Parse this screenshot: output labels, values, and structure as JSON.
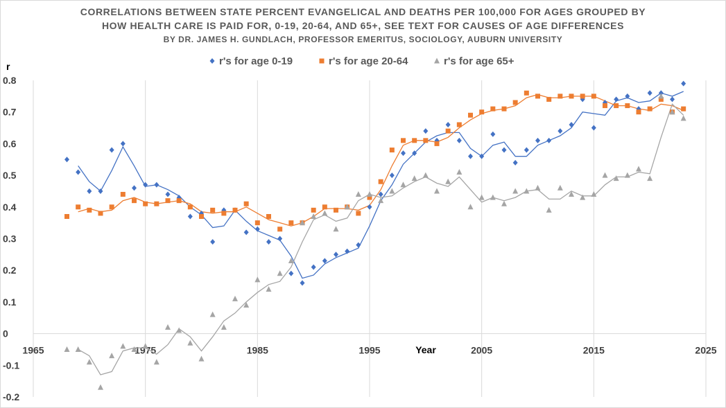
{
  "title_lines": [
    "CORRELATIONS BETWEEN STATE PERCENT EVANGELICAL AND DEATHS PER 100,000 FOR AGES GROUPED BY",
    "HOW HEALTH CARE IS PAID FOR, 0-19, 20-64, AND 65+, SEE TEXT FOR CAUSES OF AGE DIFFERENCES",
    "BY DR. JAMES H. GUNDLACH, PROFESSOR EMERITUS, SOCIOLOGY, AUBURN UNIVERSITY"
  ],
  "chart_data": {
    "type": "scatter",
    "xlabel": "Year",
    "ylabel": "r",
    "xlim": [
      1965,
      2025
    ],
    "ylim": [
      -0.2,
      0.8
    ],
    "x_ticks": [
      "1965",
      "1975",
      "1985",
      "1995",
      "2005",
      "2015",
      "2025"
    ],
    "y_ticks": [
      "-0.2",
      "-0.1",
      "0",
      "0.1",
      "0.2",
      "0.3",
      "0.4",
      "0.5",
      "0.6",
      "0.7",
      "0.8"
    ],
    "grid": "vertical",
    "legend_position": "top",
    "x": [
      1968,
      1969,
      1970,
      1971,
      1972,
      1973,
      1974,
      1975,
      1976,
      1977,
      1978,
      1979,
      1980,
      1981,
      1982,
      1983,
      1984,
      1985,
      1986,
      1987,
      1988,
      1989,
      1990,
      1991,
      1992,
      1993,
      1994,
      1995,
      1996,
      1997,
      1998,
      1999,
      2000,
      2001,
      2002,
      2003,
      2004,
      2005,
      2006,
      2007,
      2008,
      2009,
      2010,
      2011,
      2012,
      2013,
      2014,
      2015,
      2016,
      2017,
      2018,
      2019,
      2020,
      2021,
      2022,
      2023
    ],
    "series": [
      {
        "name": "r's for  age 0-19",
        "color": "#4472c4",
        "marker": "diamond",
        "values": [
          0.55,
          0.51,
          0.45,
          0.45,
          0.58,
          0.6,
          0.46,
          0.47,
          0.47,
          0.44,
          0.43,
          0.37,
          0.38,
          0.29,
          0.39,
          0.39,
          0.32,
          0.33,
          0.29,
          0.3,
          0.19,
          0.16,
          0.21,
          0.23,
          0.25,
          0.26,
          0.28,
          0.4,
          0.44,
          0.5,
          0.57,
          0.57,
          0.64,
          0.61,
          0.66,
          0.61,
          0.56,
          0.56,
          0.63,
          0.58,
          0.54,
          0.58,
          0.61,
          0.61,
          0.64,
          0.66,
          0.74,
          0.65,
          0.73,
          0.74,
          0.75,
          0.71,
          0.76,
          0.76,
          0.74,
          0.79
        ]
      },
      {
        "name": "r's for  age 20-64",
        "color": "#ed7d31",
        "marker": "square",
        "values": [
          0.37,
          0.4,
          0.39,
          0.38,
          0.4,
          0.44,
          0.42,
          0.41,
          0.41,
          0.42,
          0.42,
          0.4,
          0.37,
          0.39,
          0.38,
          0.39,
          0.41,
          0.35,
          0.37,
          0.33,
          0.35,
          0.35,
          0.39,
          0.4,
          0.39,
          0.4,
          0.38,
          0.43,
          0.48,
          0.58,
          0.61,
          0.61,
          0.61,
          0.6,
          0.64,
          0.66,
          0.69,
          0.7,
          0.71,
          0.71,
          0.73,
          0.76,
          0.75,
          0.74,
          0.75,
          0.75,
          0.75,
          0.75,
          0.72,
          0.72,
          0.72,
          0.7,
          0.71,
          0.74,
          0.7,
          0.71
        ]
      },
      {
        "name": "r's for  age 65+",
        "color": "#a5a5a5",
        "marker": "triangle",
        "values": [
          -0.05,
          -0.05,
          -0.09,
          -0.17,
          -0.07,
          -0.04,
          -0.05,
          -0.04,
          -0.09,
          0.02,
          0.01,
          -0.03,
          -0.08,
          0.06,
          0.02,
          0.11,
          0.09,
          0.17,
          0.14,
          0.19,
          0.23,
          0.35,
          0.37,
          0.38,
          0.33,
          0.4,
          0.44,
          0.44,
          0.42,
          0.45,
          0.47,
          0.49,
          0.5,
          0.45,
          0.48,
          0.51,
          0.4,
          0.43,
          0.43,
          0.41,
          0.45,
          0.45,
          0.46,
          0.39,
          0.46,
          0.44,
          0.43,
          0.44,
          0.5,
          0.49,
          0.5,
          0.52,
          0.49,
          0.75,
          0.7,
          0.68
        ]
      }
    ]
  }
}
